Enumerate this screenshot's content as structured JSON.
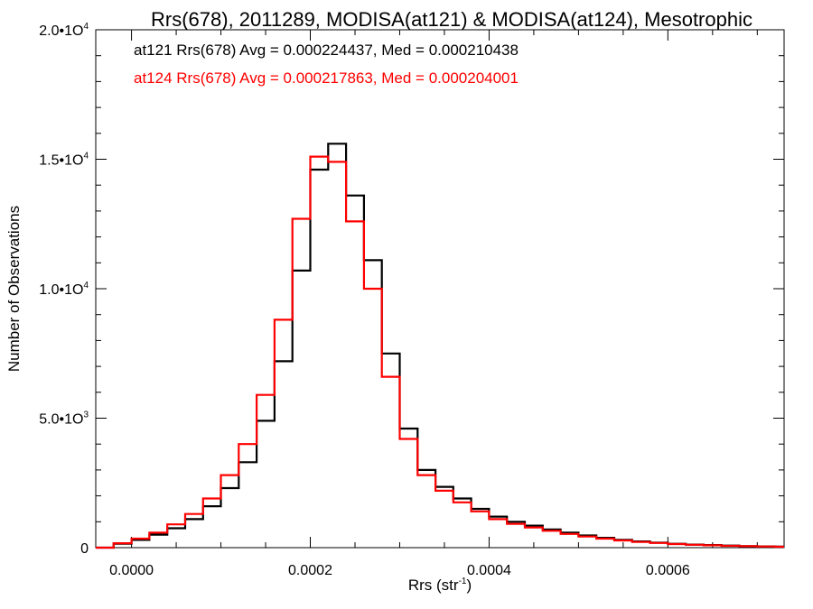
{
  "chart_data": {
    "type": "line",
    "title": "Rrs(678), 2011289, MODISA(at121) & MODISA(at124), Mesotrophic",
    "xlabel": "Rrs (str",
    "xlabel_sup": "-1",
    "xlabel_suffix": ")",
    "ylabel": "Number of Observations",
    "xlim": [
      -4e-05,
      0.00073
    ],
    "ylim": [
      0,
      20000
    ],
    "grid": false,
    "legend_position": "top-left",
    "x_ticks": [
      {
        "value": 0.0,
        "label": "0.0000"
      },
      {
        "value": 0.0002,
        "label": "0.0002"
      },
      {
        "value": 0.0004,
        "label": "0.0004"
      },
      {
        "value": 0.0006,
        "label": "0.0006"
      }
    ],
    "y_ticks": [
      {
        "value": 0,
        "base": "0",
        "sup": ""
      },
      {
        "value": 5000,
        "base": "5.0•1O",
        "sup": "3"
      },
      {
        "value": 10000,
        "base": "1.0•1O",
        "sup": "4"
      },
      {
        "value": 15000,
        "base": "1.5•1O",
        "sup": "4"
      },
      {
        "value": 20000,
        "base": "2.0•1O",
        "sup": "4"
      }
    ],
    "x": [
      -4e-05,
      -2e-05,
      0.0,
      2e-05,
      4e-05,
      6e-05,
      8e-05,
      0.0001,
      0.00012,
      0.00014,
      0.00016,
      0.00018,
      0.0002,
      0.00022,
      0.00024,
      0.00026,
      0.00028,
      0.0003,
      0.00032,
      0.00034,
      0.00036,
      0.00038,
      0.0004,
      0.00042,
      0.00044,
      0.00046,
      0.00048,
      0.0005,
      0.00052,
      0.00054,
      0.00056,
      0.00058,
      0.0006,
      0.00062,
      0.00064,
      0.00066,
      0.00068,
      0.0007,
      0.00072
    ],
    "series": [
      {
        "name": "at121",
        "color": "#000000",
        "legend": "at121 Rrs(678) Avg = 0.000224437, Med = 0.000210438",
        "values": [
          0,
          150,
          300,
          500,
          750,
          1100,
          1600,
          2300,
          3300,
          4900,
          7200,
          10700,
          14600,
          15600,
          13600,
          11100,
          7500,
          4600,
          3000,
          2350,
          1900,
          1500,
          1200,
          1000,
          850,
          700,
          580,
          470,
          380,
          300,
          240,
          190,
          150,
          120,
          100,
          80,
          60,
          50,
          40
        ]
      },
      {
        "name": "at124",
        "color": "#ff0000",
        "legend": "at124 Rrs(678) Avg = 0.000217863, Med = 0.000204001",
        "values": [
          0,
          170,
          350,
          580,
          900,
          1300,
          1900,
          2800,
          4000,
          5900,
          8800,
          12700,
          15100,
          14900,
          12600,
          10000,
          6600,
          4200,
          2800,
          2200,
          1750,
          1400,
          1100,
          920,
          780,
          650,
          530,
          430,
          350,
          280,
          220,
          180,
          140,
          110,
          90,
          70,
          55,
          45,
          35
        ]
      }
    ]
  }
}
